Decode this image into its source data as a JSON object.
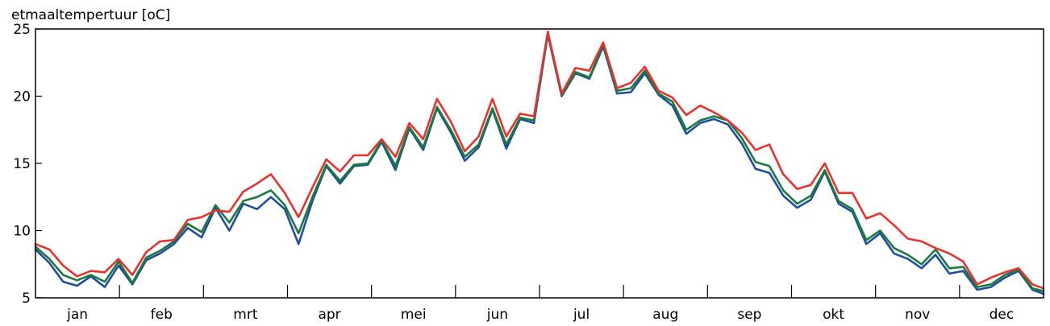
{
  "chart_data": {
    "type": "line",
    "ylabel": "etmaaltempertuur [oC]",
    "ylim": [
      5,
      25
    ],
    "yticks": [
      5,
      10,
      15,
      20,
      25
    ],
    "xlim": [
      1,
      365
    ],
    "months": [
      "jan",
      "feb",
      "mrt",
      "apr",
      "mei",
      "jun",
      "jul",
      "aug",
      "sep",
      "okt",
      "nov",
      "dec"
    ],
    "grid": false,
    "x": [
      1,
      6,
      11,
      16,
      21,
      26,
      31,
      36,
      41,
      46,
      51,
      56,
      61,
      66,
      71,
      76,
      81,
      86,
      91,
      96,
      101,
      106,
      111,
      116,
      121,
      126,
      131,
      136,
      141,
      146,
      151,
      156,
      161,
      166,
      171,
      176,
      181,
      186,
      191,
      196,
      201,
      206,
      211,
      216,
      221,
      226,
      231,
      236,
      241,
      246,
      251,
      256,
      261,
      266,
      271,
      276,
      281,
      286,
      291,
      296,
      301,
      306,
      311,
      316,
      321,
      326,
      331,
      336,
      341,
      346,
      351,
      356,
      361,
      365
    ],
    "series": [
      {
        "color": "#1f4e9c",
        "values": [
          8.6,
          7.6,
          6.2,
          5.9,
          6.6,
          5.8,
          7.4,
          6.0,
          7.8,
          8.3,
          9.0,
          10.2,
          9.5,
          11.7,
          10.0,
          12.0,
          11.6,
          12.5,
          11.6,
          9.0,
          12.2,
          14.8,
          13.5,
          14.8,
          14.9,
          16.6,
          14.5,
          17.6,
          16.0,
          19.1,
          17.3,
          15.2,
          16.2,
          19.0,
          16.1,
          18.3,
          18.0,
          24.6,
          20.0,
          21.7,
          21.3,
          23.7,
          20.2,
          20.3,
          21.7,
          20.1,
          19.3,
          17.2,
          18.0,
          18.3,
          17.9,
          16.5,
          14.6,
          14.3,
          12.6,
          11.7,
          12.3,
          14.4,
          12.0,
          11.4,
          9.0,
          9.8,
          8.3,
          7.9,
          7.2,
          8.2,
          6.8,
          7.0,
          5.6,
          5.8,
          6.5,
          7.0,
          5.6,
          5.3
        ]
      },
      {
        "color": "#1b7a3e",
        "values": [
          8.8,
          7.9,
          6.7,
          6.3,
          6.7,
          6.2,
          7.7,
          6.1,
          8.0,
          8.5,
          9.2,
          10.5,
          9.9,
          11.9,
          10.6,
          12.2,
          12.5,
          13.0,
          11.9,
          9.8,
          12.5,
          14.9,
          13.7,
          14.9,
          15.0,
          16.7,
          14.8,
          17.7,
          16.2,
          19.2,
          17.5,
          15.5,
          16.4,
          19.1,
          16.4,
          18.4,
          18.2,
          24.7,
          20.1,
          21.8,
          21.4,
          23.8,
          20.4,
          20.6,
          21.9,
          20.2,
          19.6,
          17.5,
          18.2,
          18.5,
          18.2,
          16.9,
          15.1,
          14.8,
          13.0,
          12.0,
          12.6,
          14.5,
          12.2,
          11.6,
          9.3,
          10.0,
          8.7,
          8.2,
          7.5,
          8.6,
          7.2,
          7.3,
          5.8,
          6.0,
          6.7,
          7.1,
          5.7,
          5.5
        ]
      },
      {
        "color": "#e8322f",
        "values": [
          9.0,
          8.6,
          7.4,
          6.6,
          7.0,
          6.9,
          7.9,
          6.7,
          8.4,
          9.2,
          9.3,
          10.8,
          11.0,
          11.5,
          11.4,
          12.9,
          13.5,
          14.2,
          12.8,
          11.0,
          13.2,
          15.3,
          14.4,
          15.6,
          15.6,
          16.8,
          15.5,
          18.0,
          16.8,
          19.8,
          18.1,
          15.9,
          17.0,
          19.8,
          17.0,
          18.7,
          18.5,
          24.8,
          20.2,
          22.1,
          21.9,
          24.0,
          20.6,
          21.0,
          22.2,
          20.4,
          19.9,
          18.6,
          19.3,
          18.8,
          18.2,
          17.3,
          16.0,
          16.4,
          14.2,
          13.1,
          13.4,
          15.0,
          12.8,
          12.8,
          10.9,
          11.3,
          10.4,
          9.4,
          9.2,
          8.7,
          8.3,
          7.7,
          6.0,
          6.5,
          6.9,
          7.2,
          6.0,
          5.7
        ]
      }
    ]
  }
}
